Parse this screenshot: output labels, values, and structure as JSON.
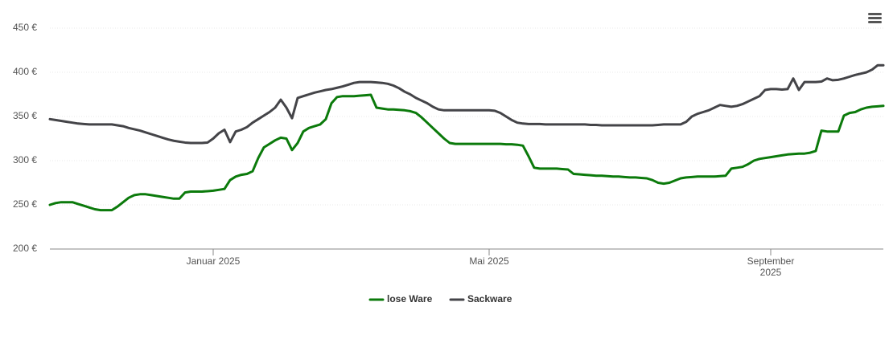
{
  "chart_data": {
    "type": "line",
    "categories": [
      null,
      null,
      null,
      null,
      null,
      null,
      null,
      null,
      null,
      null,
      null,
      null,
      null,
      null,
      null,
      null,
      null,
      null,
      null,
      null,
      null,
      null,
      null,
      null,
      null,
      null,
      null,
      null,
      null,
      "Januar 2025",
      null,
      null,
      null,
      null,
      null,
      null,
      null,
      null,
      null,
      null,
      null,
      null,
      null,
      null,
      null,
      null,
      null,
      null,
      null,
      null,
      null,
      null,
      null,
      null,
      null,
      null,
      null,
      null,
      null,
      null,
      null,
      null,
      null,
      null,
      null,
      null,
      null,
      null,
      null,
      null,
      null,
      null,
      null,
      null,
      null,
      null,
      null,
      null,
      "Mai 2025",
      null,
      null,
      null,
      null,
      null,
      null,
      null,
      null,
      null,
      null,
      null,
      null,
      null,
      null,
      null,
      null,
      null,
      null,
      null,
      null,
      null,
      null,
      null,
      null,
      null,
      null,
      null,
      null,
      null,
      null,
      null,
      null,
      null,
      null,
      null,
      null,
      null,
      null,
      null,
      null,
      null,
      null,
      null,
      null,
      null,
      null,
      null,
      null,
      null,
      "September 2025",
      null,
      null,
      null,
      null,
      null,
      null,
      null,
      null,
      null,
      null,
      null,
      null,
      null,
      null,
      null,
      null,
      null,
      null,
      null,
      null
    ],
    "series": [
      {
        "name": "lose Ware",
        "color": "#0b7a0b",
        "values": [
          250,
          252,
          253,
          253,
          253,
          251,
          249,
          247,
          245,
          244,
          244,
          244,
          248,
          253,
          258,
          261,
          262,
          262,
          261,
          260,
          259,
          258,
          257,
          257,
          264,
          265,
          265,
          265,
          265.5,
          266,
          267,
          268,
          278,
          282,
          284,
          285,
          288,
          303,
          315,
          319,
          323,
          326,
          325,
          312,
          320,
          333,
          337,
          339,
          341,
          347,
          365,
          372,
          373,
          373,
          373,
          373.5,
          374,
          374.5,
          360,
          359,
          358,
          358,
          357.5,
          357,
          356,
          354,
          349,
          343,
          337,
          331,
          325,
          320,
          319,
          319,
          319,
          319,
          319,
          319,
          319,
          319,
          319,
          318.5,
          318.5,
          318,
          317,
          305,
          292,
          291,
          291,
          291,
          291,
          290.5,
          290,
          285,
          284.5,
          284,
          283.5,
          283,
          283,
          282.5,
          282,
          282,
          281.5,
          281,
          281,
          280.5,
          280,
          278,
          275,
          274,
          275,
          277.5,
          280,
          281,
          281.5,
          282,
          282,
          282,
          282,
          282.5,
          283,
          291,
          292,
          293,
          296,
          300,
          302,
          303,
          304,
          305,
          306,
          307,
          307.5,
          308,
          308,
          309,
          311,
          334,
          333,
          333,
          333,
          351,
          354,
          355,
          358,
          360,
          361,
          361.5,
          362
        ]
      },
      {
        "name": "Sackware",
        "color": "#444448",
        "values": [
          347,
          346,
          345,
          344,
          343,
          342,
          341.5,
          341,
          341,
          341,
          341,
          341,
          340,
          339,
          337,
          335.5,
          334,
          332,
          330,
          328,
          326,
          324,
          322.5,
          321.5,
          320.5,
          320,
          320,
          320,
          320.5,
          325,
          331,
          335,
          321,
          333,
          335,
          338,
          343,
          347,
          351,
          355,
          360,
          369,
          360,
          348,
          371,
          373,
          375,
          377,
          378.5,
          380,
          381,
          382.5,
          384,
          386,
          388,
          389,
          389,
          389,
          388.5,
          388,
          387,
          385,
          382,
          378,
          375,
          371,
          368,
          365,
          361,
          358,
          357,
          357,
          357,
          357,
          357,
          357,
          357,
          357,
          357,
          356.5,
          354,
          350,
          346,
          343,
          342,
          341.5,
          341.5,
          341.5,
          341,
          341,
          341,
          341,
          341,
          341,
          341,
          341,
          340.5,
          340.5,
          340,
          340,
          340,
          340,
          340,
          340,
          340,
          340,
          340,
          340,
          340.5,
          341,
          341,
          341,
          341,
          344,
          350,
          353,
          355,
          357,
          360,
          363,
          362,
          361,
          362,
          364,
          367,
          370,
          373,
          380,
          381,
          381,
          380.5,
          381,
          393,
          380,
          389,
          389,
          389,
          389.5,
          393,
          391,
          391.5,
          393,
          395,
          397,
          398.5,
          400,
          403,
          408,
          408
        ]
      }
    ],
    "ylim": [
      200,
      450
    ],
    "yticks": [
      {
        "value": 200,
        "label": "200 €"
      },
      {
        "value": 250,
        "label": "250 €"
      },
      {
        "value": 300,
        "label": "300 €"
      },
      {
        "value": 350,
        "label": "350 €"
      },
      {
        "value": 400,
        "label": "400 €"
      },
      {
        "value": 450,
        "label": "450 €"
      }
    ],
    "grid": true,
    "legend": "bottom"
  }
}
